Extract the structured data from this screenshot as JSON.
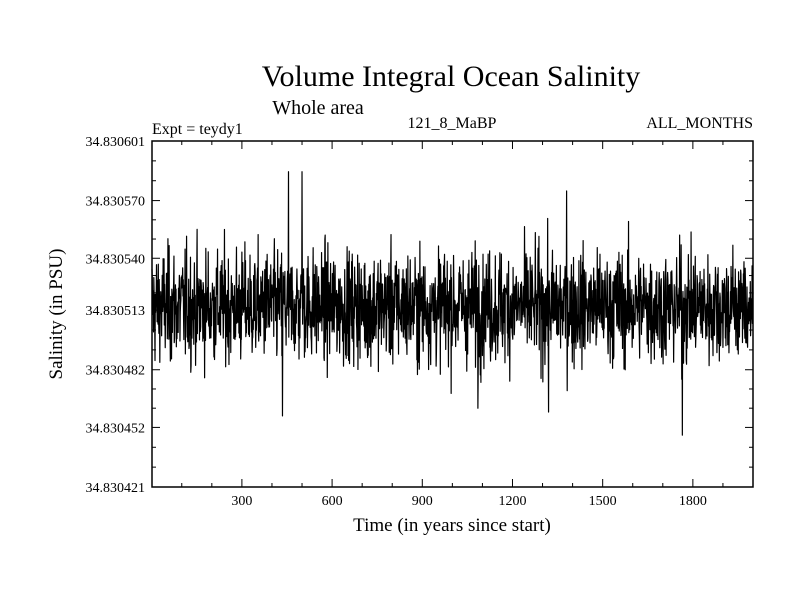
{
  "chart_data": {
    "type": "line",
    "title": "Volume Integral Ocean Salinity",
    "subtitle": "Whole area",
    "header_left": "Expt = teydy1",
    "header_center": "121_8_MaBP",
    "header_right": "ALL_MONTHS",
    "xlabel": "Time (in years since start)",
    "ylabel": "Salinity (in PSU)",
    "xlim": [
      1,
      2000
    ],
    "ylim": [
      34.830421,
      34.830601
    ],
    "xticks": [
      300,
      600,
      900,
      1200,
      1500,
      1800
    ],
    "yticks": [
      34.830421,
      34.830452,
      34.830482,
      34.830513,
      34.83054,
      34.83057,
      34.830601
    ],
    "ytick_labels": [
      "34.830421",
      "34.830452",
      "34.830482",
      "34.830513",
      "34.830540",
      "34.830570",
      "34.830601"
    ],
    "series": [
      {
        "name": "teydy1",
        "description": "annual volume-mean salinity, noisy around 34.830515",
        "mean": 34.830515,
        "n_points": 2000,
        "key_points": [
          {
            "x": 435,
            "y": 34.830458
          },
          {
            "x": 455,
            "y": 34.830585
          },
          {
            "x": 500,
            "y": 34.830585
          },
          {
            "x": 1085,
            "y": 34.830462
          },
          {
            "x": 1320,
            "y": 34.83046
          },
          {
            "x": 1765,
            "y": 34.830448
          },
          {
            "x": 1380,
            "y": 34.830575
          }
        ]
      }
    ]
  }
}
